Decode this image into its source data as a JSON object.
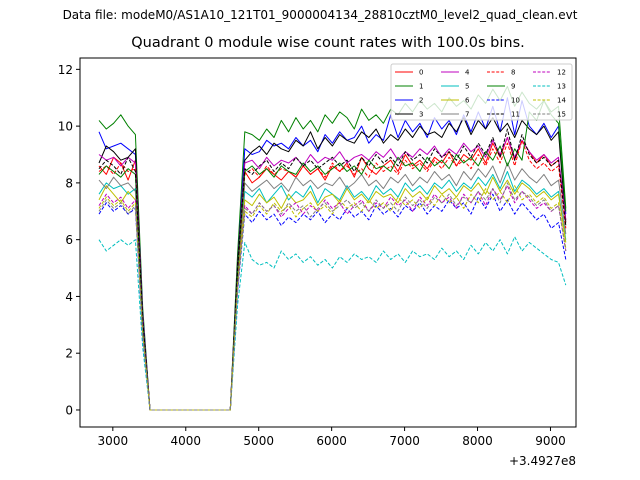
{
  "suptitle": "Data file: modeM0/AS1A10_121T01_9000004134_28810cztM0_level2_quad_clean.evt",
  "chart_data": {
    "type": "line",
    "title": "Quadrant 0 module wise count rates with 100.0s bins.",
    "xlabel": "",
    "ylabel": "",
    "x_offset_label": "+3.4927e8",
    "xlim": [
      2550,
      9350
    ],
    "ylim": [
      -0.6,
      12.4
    ],
    "xticks": [
      3000,
      4000,
      5000,
      6000,
      7000,
      8000,
      9000
    ],
    "yticks": [
      0,
      2,
      4,
      6,
      8,
      10,
      12
    ],
    "grid": false,
    "legend_position": "top-right",
    "legend_columns": 4,
    "x": [
      2810,
      2910,
      3010,
      3110,
      3210,
      3310,
      3410,
      3510,
      3610,
      3710,
      3810,
      3910,
      4010,
      4110,
      4210,
      4310,
      4410,
      4510,
      4610,
      4710,
      4810,
      4910,
      5010,
      5110,
      5210,
      5310,
      5410,
      5510,
      5610,
      5710,
      5810,
      5910,
      6010,
      6110,
      6210,
      6310,
      6410,
      6510,
      6610,
      6710,
      6810,
      6910,
      7010,
      7110,
      7210,
      7310,
      7410,
      7510,
      7610,
      7710,
      7810,
      7910,
      8010,
      8110,
      8210,
      8310,
      8410,
      8510,
      8610,
      8710,
      8810,
      8910,
      9010,
      9110,
      9210
    ],
    "series": [
      {
        "name": "0",
        "color": "#ff0000",
        "dash": "solid",
        "values": [
          8.6,
          8.3,
          8.9,
          8.7,
          8.1,
          8.8,
          3.2,
          0,
          0,
          0,
          0,
          0,
          0,
          0,
          0,
          0,
          0,
          0,
          0,
          4.9,
          8.4,
          8.0,
          8.2,
          8.5,
          8.3,
          8.1,
          8.4,
          8.2,
          8.6,
          8.3,
          8.5,
          8.1,
          8.6,
          8.4,
          8.7,
          8.2,
          8.9,
          8.5,
          8.3,
          8.6,
          8.8,
          8.4,
          9.0,
          8.6,
          8.8,
          8.5,
          8.9,
          8.7,
          9.1,
          8.6,
          9.0,
          8.8,
          9.2,
          8.7,
          9.4,
          8.9,
          9.6,
          8.8,
          9.5,
          9.1,
          8.7,
          9.0,
          8.6,
          8.8,
          6.7
        ]
      },
      {
        "name": "1",
        "color": "#008000",
        "dash": "solid",
        "values": [
          10.2,
          9.9,
          10.1,
          10.4,
          10.0,
          9.7,
          3.6,
          0,
          0,
          0,
          0,
          0,
          0,
          0,
          0,
          0,
          0,
          0,
          0,
          5.5,
          9.8,
          9.7,
          9.5,
          9.9,
          9.6,
          10.2,
          9.8,
          10.3,
          9.9,
          10.2,
          9.8,
          10.4,
          10.1,
          10.5,
          10.3,
          9.9,
          10.6,
          10.2,
          10.4,
          10.1,
          10.6,
          10.4,
          10.8,
          10.5,
          10.9,
          10.6,
          10.8,
          10.5,
          11.0,
          10.7,
          10.9,
          10.6,
          11.1,
          10.8,
          11.3,
          10.9,
          11.4,
          10.7,
          11.2,
          10.8,
          10.6,
          10.9,
          10.5,
          10.7,
          7.1
        ]
      },
      {
        "name": "2",
        "color": "#0000ff",
        "dash": "solid",
        "values": [
          9.8,
          9.2,
          9.3,
          9.4,
          9.2,
          9.0,
          3.4,
          0,
          0,
          0,
          0,
          0,
          0,
          0,
          0,
          0,
          0,
          0,
          0,
          5.1,
          9.2,
          9.0,
          9.1,
          9.5,
          9.3,
          9.4,
          9.2,
          9.6,
          9.3,
          9.5,
          9.1,
          9.7,
          9.4,
          9.8,
          9.5,
          9.6,
          10.0,
          9.4,
          9.7,
          9.5,
          10.4,
          9.6,
          10.2,
          9.8,
          10.1,
          9.6,
          10.3,
          9.9,
          10.2,
          9.7,
          10.4,
          9.8,
          10.5,
          9.9,
          10.7,
          9.8,
          11.0,
          9.7,
          10.9,
          10.0,
          9.7,
          10.1,
          9.6,
          10.0,
          6.9
        ]
      },
      {
        "name": "3",
        "color": "#000000",
        "dash": "solid",
        "values": [
          8.7,
          9.3,
          9.1,
          8.8,
          8.9,
          9.2,
          3.3,
          0,
          0,
          0,
          0,
          0,
          0,
          0,
          0,
          0,
          0,
          0,
          0,
          5.2,
          8.8,
          9.1,
          9.3,
          9.0,
          9.4,
          9.2,
          9.1,
          9.5,
          9.3,
          9.8,
          9.2,
          9.6,
          9.3,
          9.7,
          9.5,
          9.4,
          9.8,
          9.6,
          9.9,
          9.4,
          9.7,
          9.5,
          9.9,
          9.6,
          10.0,
          9.7,
          9.8,
          9.6,
          10.1,
          9.8,
          10.3,
          9.7,
          10.2,
          9.9,
          10.3,
          9.8,
          10.1,
          9.6,
          10.2,
          9.9,
          9.7,
          10.0,
          9.5,
          9.8,
          6.6
        ]
      },
      {
        "name": "4",
        "color": "#bf00bf",
        "dash": "solid",
        "values": [
          9.0,
          8.8,
          8.9,
          8.6,
          8.9,
          8.7,
          3.3,
          0,
          0,
          0,
          0,
          0,
          0,
          0,
          0,
          0,
          0,
          0,
          0,
          5.0,
          8.7,
          8.8,
          8.5,
          8.9,
          8.6,
          8.8,
          8.7,
          8.9,
          8.6,
          9.0,
          8.7,
          8.9,
          8.8,
          9.1,
          8.7,
          8.9,
          9.0,
          8.8,
          9.1,
          8.9,
          9.2,
          8.8,
          9.1,
          8.9,
          9.2,
          9.0,
          9.3,
          8.9,
          9.2,
          9.0,
          9.4,
          9.1,
          9.3,
          8.9,
          9.5,
          9.0,
          9.6,
          8.9,
          9.5,
          9.1,
          8.8,
          9.0,
          8.7,
          8.9,
          6.7
        ]
      },
      {
        "name": "5",
        "color": "#00bfbf",
        "dash": "solid",
        "values": [
          7.6,
          8.0,
          7.8,
          7.9,
          7.6,
          7.8,
          2.9,
          0,
          0,
          0,
          0,
          0,
          0,
          0,
          0,
          0,
          0,
          0,
          0,
          4.5,
          7.7,
          7.5,
          7.8,
          7.3,
          7.6,
          7.9,
          7.4,
          7.7,
          7.5,
          7.9,
          7.3,
          7.8,
          7.6,
          7.4,
          7.9,
          7.5,
          7.7,
          7.4,
          7.9,
          7.6,
          7.8,
          7.5,
          8.0,
          7.7,
          7.9,
          7.6,
          8.0,
          7.8,
          8.1,
          7.7,
          8.0,
          7.8,
          8.2,
          7.9,
          8.3,
          7.8,
          8.4,
          7.7,
          8.1,
          7.9,
          7.6,
          7.8,
          7.5,
          7.7,
          6.0
        ]
      },
      {
        "name": "6",
        "color": "#bfbf00",
        "dash": "solid",
        "values": [
          7.4,
          7.9,
          7.6,
          7.3,
          7.7,
          7.4,
          2.8,
          0,
          0,
          0,
          0,
          0,
          0,
          0,
          0,
          0,
          0,
          0,
          0,
          4.6,
          7.4,
          7.2,
          7.6,
          7.3,
          7.5,
          7.1,
          7.6,
          7.3,
          7.4,
          7.7,
          7.2,
          7.5,
          7.6,
          7.3,
          7.8,
          7.4,
          7.6,
          7.3,
          7.7,
          7.5,
          7.6,
          7.3,
          7.8,
          7.5,
          7.7,
          7.4,
          7.9,
          7.6,
          7.8,
          7.5,
          7.9,
          7.7,
          8.0,
          7.6,
          8.2,
          7.7,
          8.1,
          7.6,
          8.0,
          7.8,
          7.5,
          7.7,
          7.4,
          7.6,
          5.9
        ]
      },
      {
        "name": "7",
        "color": "#808080",
        "dash": "solid",
        "values": [
          8.1,
          7.8,
          8.2,
          7.9,
          8.0,
          7.7,
          3.0,
          0,
          0,
          0,
          0,
          0,
          0,
          0,
          0,
          0,
          0,
          0,
          0,
          4.7,
          8.0,
          7.7,
          7.9,
          8.1,
          7.8,
          8.0,
          7.7,
          8.2,
          7.9,
          8.1,
          7.8,
          8.0,
          7.9,
          8.2,
          7.8,
          8.0,
          8.3,
          7.9,
          8.1,
          7.8,
          8.2,
          8.0,
          8.3,
          7.9,
          8.2,
          8.0,
          8.4,
          8.1,
          8.3,
          7.9,
          8.4,
          8.1,
          8.5,
          8.2,
          8.6,
          8.0,
          8.7,
          8.1,
          8.5,
          8.2,
          8.0,
          8.3,
          7.9,
          8.1,
          6.2
        ]
      },
      {
        "name": "8",
        "color": "#ff0000",
        "dash": "dashed",
        "values": [
          8.4,
          8.6,
          8.3,
          8.7,
          8.4,
          8.5,
          3.2,
          0,
          0,
          0,
          0,
          0,
          0,
          0,
          0,
          0,
          0,
          0,
          0,
          4.8,
          8.3,
          8.5,
          8.2,
          8.6,
          8.3,
          8.5,
          8.4,
          8.2,
          8.6,
          8.3,
          8.5,
          8.2,
          8.7,
          8.4,
          8.6,
          8.3,
          8.5,
          8.2,
          8.7,
          8.4,
          8.6,
          8.3,
          8.8,
          8.5,
          8.7,
          8.4,
          8.8,
          8.5,
          8.9,
          8.6,
          8.8,
          8.5,
          9.0,
          8.6,
          9.2,
          8.7,
          9.4,
          8.6,
          9.5,
          8.8,
          8.5,
          8.7,
          8.4,
          8.6,
          6.4
        ]
      },
      {
        "name": "9",
        "color": "#008000",
        "dash": "solid",
        "values": [
          8.3,
          8.6,
          8.4,
          8.2,
          8.5,
          8.3,
          3.1,
          0,
          0,
          0,
          0,
          0,
          0,
          0,
          0,
          0,
          0,
          0,
          0,
          4.9,
          8.4,
          8.6,
          8.3,
          8.5,
          8.2,
          8.6,
          8.4,
          8.3,
          8.7,
          8.4,
          8.6,
          8.3,
          8.5,
          8.7,
          8.4,
          8.6,
          8.3,
          8.8,
          8.5,
          8.6,
          8.4,
          8.9,
          8.6,
          8.7,
          8.4,
          8.9,
          8.6,
          8.8,
          8.5,
          9.0,
          8.7,
          8.9,
          8.6,
          9.1,
          8.8,
          9.3,
          8.6,
          9.2,
          8.8,
          10.5,
          10.2,
          10.9,
          10.4,
          10.1,
          7.0
        ]
      },
      {
        "name": "10",
        "color": "#0000ff",
        "dash": "dashed",
        "values": [
          6.9,
          7.3,
          7.0,
          7.2,
          6.9,
          7.1,
          2.6,
          0,
          0,
          0,
          0,
          0,
          0,
          0,
          0,
          0,
          0,
          0,
          0,
          4.2,
          6.9,
          6.6,
          7.0,
          6.7,
          6.9,
          6.5,
          6.8,
          6.6,
          6.9,
          6.7,
          7.0,
          6.6,
          6.9,
          6.7,
          7.1,
          6.8,
          7.0,
          6.7,
          7.2,
          6.9,
          7.1,
          6.8,
          7.2,
          7.0,
          7.3,
          6.9,
          7.2,
          7.0,
          7.4,
          7.1,
          7.3,
          6.9,
          7.5,
          7.1,
          7.6,
          7.0,
          7.4,
          6.9,
          7.3,
          7.0,
          6.7,
          6.9,
          6.4,
          6.6,
          5.3
        ]
      },
      {
        "name": "11",
        "color": "#000000",
        "dash": "dashed",
        "values": [
          8.5,
          8.8,
          8.6,
          8.3,
          8.9,
          8.4,
          3.2,
          0,
          0,
          0,
          0,
          0,
          0,
          0,
          0,
          0,
          0,
          0,
          0,
          5.0,
          8.5,
          8.3,
          8.6,
          8.8,
          8.4,
          8.7,
          8.5,
          8.9,
          8.6,
          8.8,
          8.5,
          8.7,
          8.9,
          8.6,
          8.8,
          8.4,
          8.9,
          8.6,
          9.0,
          8.7,
          8.9,
          8.6,
          9.1,
          8.8,
          9.0,
          8.7,
          9.2,
          8.9,
          9.1,
          8.8,
          9.3,
          8.9,
          9.4,
          9.0,
          9.6,
          8.9,
          9.9,
          8.8,
          9.7,
          9.0,
          8.7,
          8.9,
          8.6,
          8.8,
          6.5
        ]
      },
      {
        "name": "12",
        "color": "#bf00bf",
        "dash": "dashed",
        "values": [
          7.2,
          7.6,
          7.3,
          7.5,
          7.1,
          7.4,
          2.7,
          0,
          0,
          0,
          0,
          0,
          0,
          0,
          0,
          0,
          0,
          0,
          0,
          4.3,
          7.2,
          6.9,
          7.3,
          7.0,
          7.2,
          6.8,
          7.1,
          7.3,
          6.9,
          7.2,
          7.0,
          7.4,
          7.1,
          7.3,
          6.9,
          7.2,
          7.4,
          7.0,
          7.3,
          7.1,
          7.5,
          7.2,
          7.4,
          7.0,
          7.5,
          7.2,
          7.6,
          7.3,
          7.5,
          7.1,
          7.6,
          7.3,
          7.7,
          7.2,
          7.8,
          7.4,
          7.9,
          7.3,
          7.7,
          7.4,
          7.1,
          7.3,
          7.0,
          7.2,
          5.6
        ]
      },
      {
        "name": "13",
        "color": "#00bfbf",
        "dash": "dashed",
        "values": [
          6.0,
          5.6,
          5.8,
          6.0,
          5.8,
          6.0,
          2.2,
          0,
          0,
          0,
          0,
          0,
          0,
          0,
          0,
          0,
          0,
          0,
          0,
          3.7,
          5.9,
          5.3,
          5.1,
          5.2,
          5.0,
          5.6,
          5.3,
          5.5,
          5.2,
          5.4,
          5.1,
          5.3,
          5.0,
          5.4,
          5.2,
          5.5,
          5.3,
          5.4,
          5.2,
          5.6,
          5.3,
          5.5,
          5.2,
          5.6,
          5.4,
          5.5,
          5.3,
          5.7,
          5.4,
          5.6,
          5.3,
          5.8,
          5.5,
          5.9,
          5.6,
          6.0,
          5.5,
          6.1,
          5.6,
          5.9,
          5.7,
          5.5,
          5.3,
          5.2,
          4.4
        ]
      },
      {
        "name": "14",
        "color": "#bfbf00",
        "dash": "dashed",
        "values": [
          7.1,
          7.5,
          7.2,
          7.4,
          7.0,
          7.3,
          2.7,
          0,
          0,
          0,
          0,
          0,
          0,
          0,
          0,
          0,
          0,
          0,
          0,
          4.4,
          7.0,
          6.8,
          7.2,
          6.9,
          7.3,
          7.0,
          7.2,
          6.8,
          7.1,
          7.3,
          7.0,
          7.2,
          6.9,
          7.4,
          7.1,
          7.3,
          7.0,
          7.4,
          7.1,
          7.3,
          7.0,
          7.5,
          7.2,
          7.4,
          7.1,
          7.5,
          7.2,
          7.6,
          7.3,
          7.5,
          7.1,
          7.6,
          7.3,
          7.8,
          7.4,
          7.7,
          7.3,
          7.9,
          7.4,
          7.6,
          7.3,
          7.5,
          7.1,
          7.3,
          5.7
        ]
      },
      {
        "name": "15",
        "color": "#808080",
        "dash": "dashed",
        "values": [
          7.0,
          7.4,
          7.1,
          7.3,
          6.9,
          7.2,
          2.7,
          0,
          0,
          0,
          0,
          0,
          0,
          0,
          0,
          0,
          0,
          0,
          0,
          4.3,
          7.1,
          6.9,
          7.3,
          7.0,
          7.2,
          6.9,
          7.3,
          7.0,
          7.2,
          6.8,
          7.1,
          7.3,
          7.0,
          7.2,
          7.4,
          7.1,
          7.3,
          7.0,
          7.4,
          7.1,
          7.3,
          7.0,
          7.5,
          7.2,
          7.4,
          7.1,
          7.5,
          7.3,
          7.6,
          7.2,
          7.5,
          7.3,
          7.7,
          7.4,
          7.8,
          7.3,
          8.0,
          7.4,
          7.7,
          7.5,
          7.2,
          7.4,
          7.0,
          7.2,
          5.6
        ]
      }
    ]
  }
}
